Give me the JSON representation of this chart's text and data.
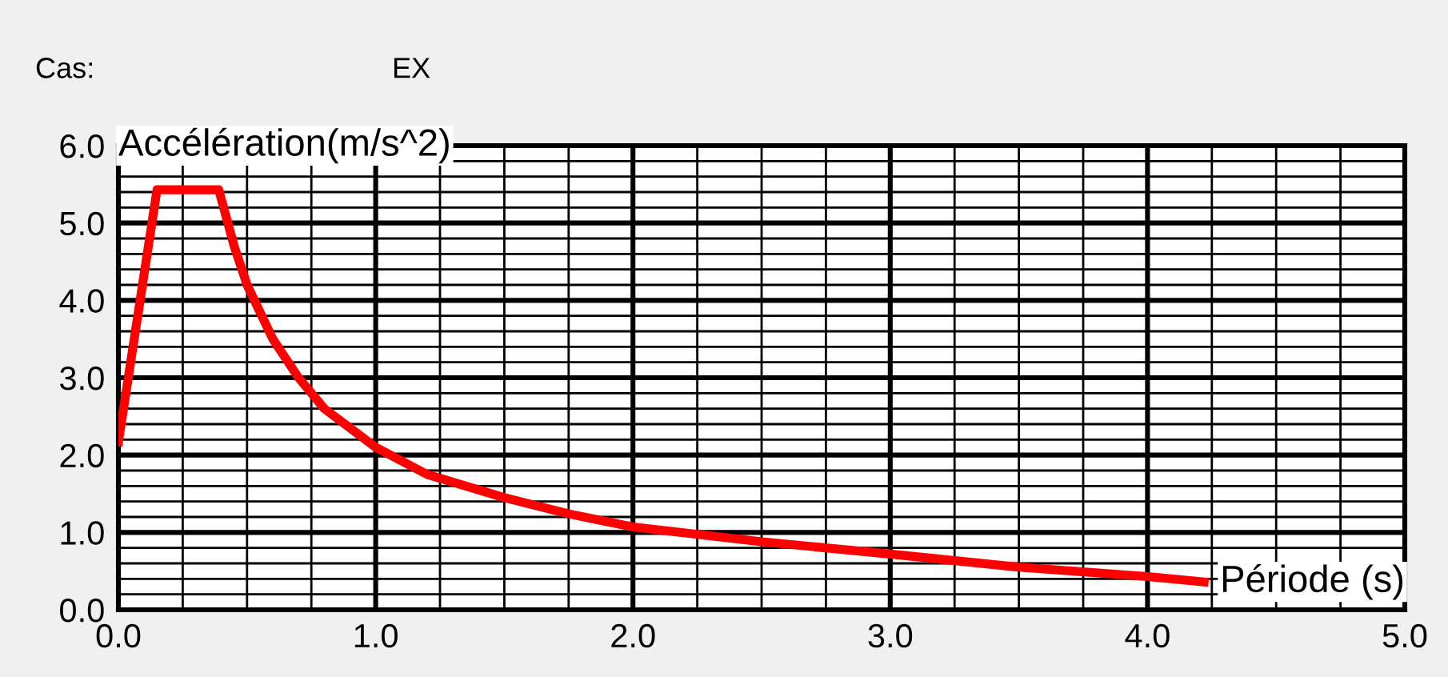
{
  "chart_data": {
    "type": "line",
    "xlabel": "Période (s)",
    "ylabel": "Accélération(m/s^2)",
    "annotations": [
      "Cas:",
      "EX"
    ],
    "x": [
      0,
      0.037,
      0.15,
      0.39,
      0.45,
      0.5,
      0.6,
      0.7,
      0.8,
      1.0,
      1.2,
      1.5,
      1.75,
      2.0,
      2.5,
      3.0,
      3.5,
      4.0,
      4.22
    ],
    "series": [
      {
        "color": "#ff0000",
        "values": [
          2.17,
          2.97,
          5.43,
          5.43,
          4.7,
          4.2,
          3.5,
          3.0,
          2.6,
          2.1,
          1.75,
          1.45,
          1.24,
          1.07,
          0.88,
          0.72,
          0.55,
          0.43,
          0.36
        ]
      }
    ],
    "xlim": [
      0,
      5
    ],
    "ylim": [
      0,
      6
    ],
    "xticks": [
      {
        "value": 0,
        "label": "0.0"
      },
      {
        "value": 1,
        "label": "1.0"
      },
      {
        "value": 2,
        "label": "2.0"
      },
      {
        "value": 3,
        "label": "3.0"
      },
      {
        "value": 4,
        "label": "4.0"
      },
      {
        "value": 5,
        "label": "5.0"
      }
    ],
    "yticks": [
      {
        "value": 0,
        "label": "0.0"
      },
      {
        "value": 1,
        "label": "1.0"
      },
      {
        "value": 2,
        "label": "2.0"
      },
      {
        "value": 3,
        "label": "3.0"
      },
      {
        "value": 4,
        "label": "4.0"
      },
      {
        "value": 5,
        "label": "5.0"
      },
      {
        "value": 6,
        "label": "6.0"
      }
    ],
    "grid": true,
    "marker": "none",
    "line_style": "solid"
  }
}
